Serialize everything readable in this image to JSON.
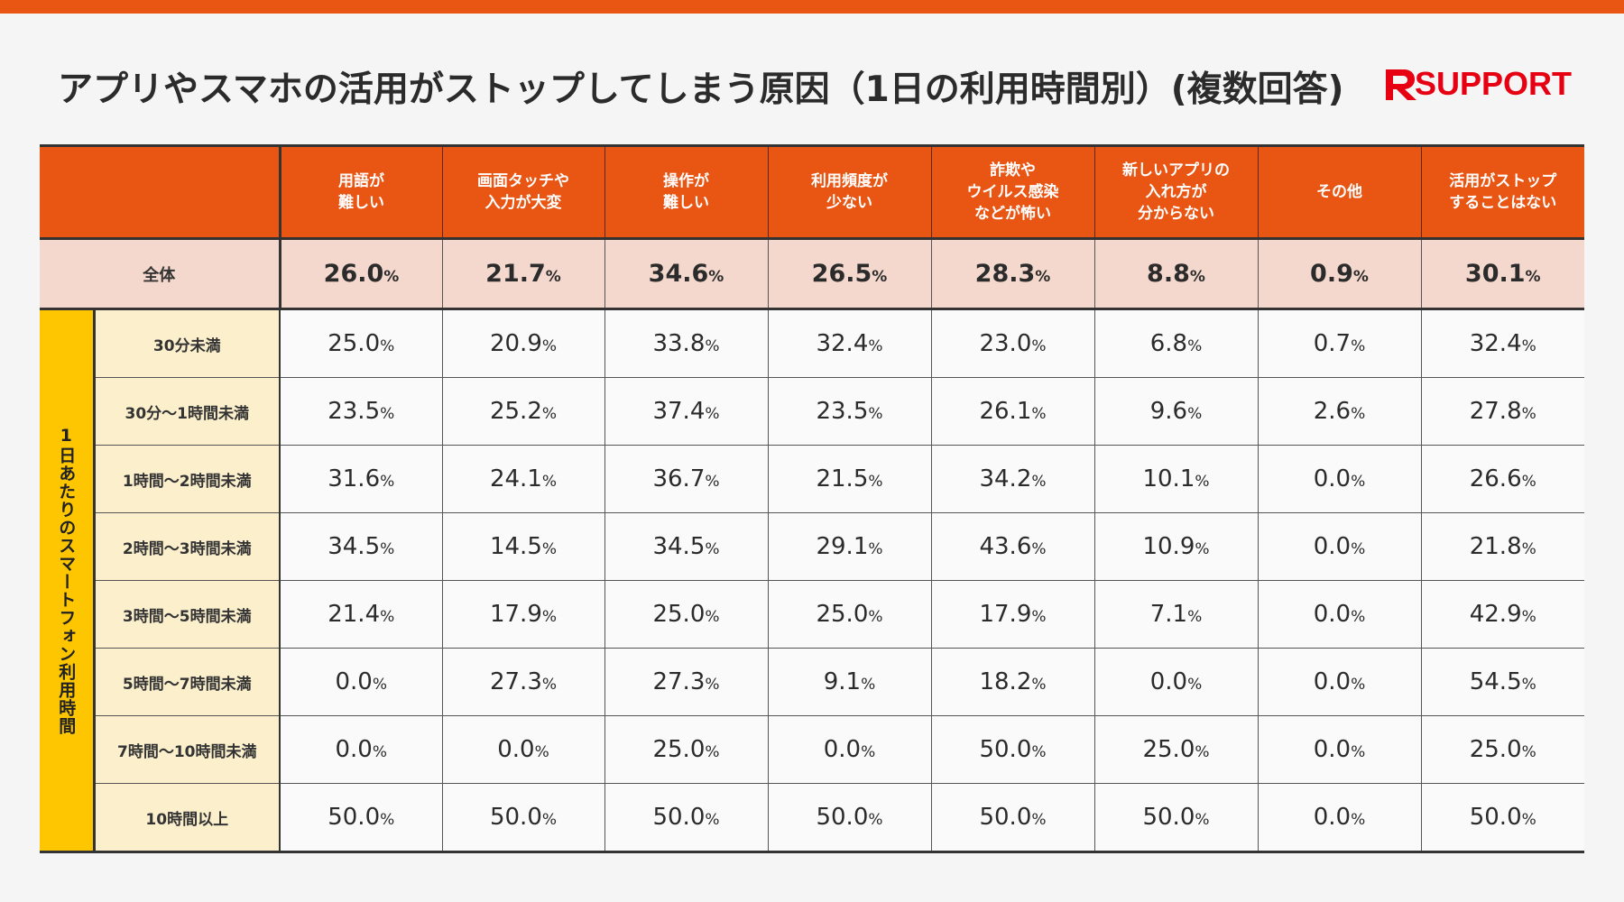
{
  "title": "アプリやスマホの活用がストップしてしまう原因（1日の利用時間別）(複数回答)",
  "logo": {
    "text": "SUPPORT",
    "icon": "rsupport-r-icon",
    "color": "#e60012"
  },
  "colors": {
    "accent": "#e95513",
    "overall_bg": "#f5d8cd",
    "group_bg": "#fdc600",
    "row_label_bg": "#fbefcc"
  },
  "group_label": "1日あたりのスマートフォン利用時間",
  "overall_label": "全体",
  "percent_sign": "%",
  "chart_data": {
    "type": "table",
    "title": "アプリやスマホの活用がストップしてしまう原因（1日の利用時間別）(複数回答)",
    "unit": "%",
    "columns": [
      "用語が\n難しい",
      "画面タッチや\n入力が大変",
      "操作が\n難しい",
      "利用頻度が\n少ない",
      "詐欺や\nウイルス感染\nなどが怖い",
      "新しいアプリの\n入れ方が\n分からない",
      "その他",
      "活用がストップ\nすることはない"
    ],
    "overall": [
      "26.0",
      "21.7",
      "34.6",
      "26.5",
      "28.3",
      "8.8",
      "0.9",
      "30.1"
    ],
    "rows": [
      {
        "label": "30分未満",
        "values": [
          "25.0",
          "20.9",
          "33.8",
          "32.4",
          "23.0",
          "6.8",
          "0.7",
          "32.4"
        ]
      },
      {
        "label": "30分～1時間未満",
        "values": [
          "23.5",
          "25.2",
          "37.4",
          "23.5",
          "26.1",
          "9.6",
          "2.6",
          "27.8"
        ]
      },
      {
        "label": "1時間～2時間未満",
        "values": [
          "31.6",
          "24.1",
          "36.7",
          "21.5",
          "34.2",
          "10.1",
          "0.0",
          "26.6"
        ]
      },
      {
        "label": "2時間～3時間未満",
        "values": [
          "34.5",
          "14.5",
          "34.5",
          "29.1",
          "43.6",
          "10.9",
          "0.0",
          "21.8"
        ]
      },
      {
        "label": "3時間～5時間未満",
        "values": [
          "21.4",
          "17.9",
          "25.0",
          "25.0",
          "17.9",
          "7.1",
          "0.0",
          "42.9"
        ]
      },
      {
        "label": "5時間～7時間未満",
        "values": [
          "0.0",
          "27.3",
          "27.3",
          "9.1",
          "18.2",
          "0.0",
          "0.0",
          "54.5"
        ]
      },
      {
        "label": "7時間～10時間未満",
        "values": [
          "0.0",
          "0.0",
          "25.0",
          "0.0",
          "50.0",
          "25.0",
          "0.0",
          "25.0"
        ]
      },
      {
        "label": "10時間以上",
        "values": [
          "50.0",
          "50.0",
          "50.0",
          "50.0",
          "50.0",
          "50.0",
          "0.0",
          "50.0"
        ]
      }
    ]
  }
}
